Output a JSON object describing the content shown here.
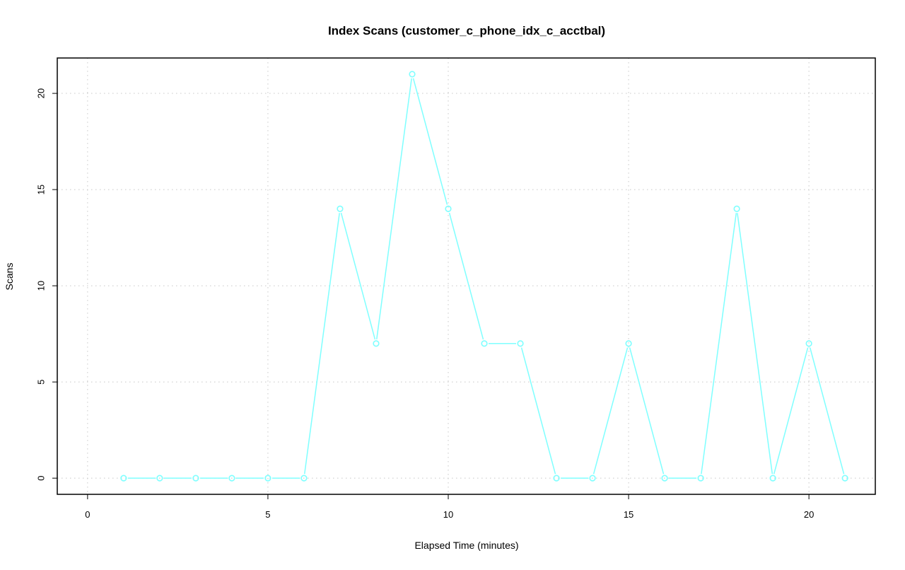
{
  "chart_data": {
    "type": "line",
    "title": "Index Scans (customer_c_phone_idx_c_acctbal)",
    "xlabel": "Elapsed Time (minutes)",
    "ylabel": "Scans",
    "x": [
      1,
      2,
      3,
      4,
      5,
      6,
      7,
      8,
      9,
      10,
      11,
      12,
      13,
      14,
      15,
      16,
      17,
      18,
      19,
      20,
      21
    ],
    "series": [
      {
        "values": [
          0,
          0,
          0,
          0,
          0,
          0,
          14,
          7,
          21,
          14,
          7,
          7,
          0,
          0,
          7,
          0,
          0,
          14,
          0,
          7,
          0
        ],
        "color": "#7fffff"
      }
    ],
    "xlim": [
      -0.84,
      21.84
    ],
    "ylim": [
      -0.84,
      21.84
    ],
    "xticks": [
      "0",
      "5",
      "10",
      "15",
      "20"
    ],
    "yticks": [
      "0",
      "5",
      "10",
      "15",
      "20"
    ],
    "grid": true,
    "marker": "open-circle"
  }
}
